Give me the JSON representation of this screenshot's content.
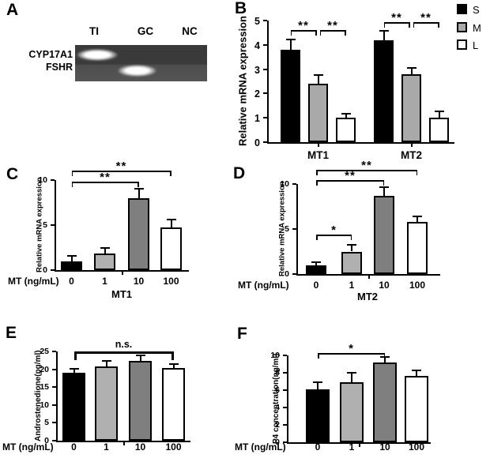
{
  "panelA": {
    "letter": "A",
    "lanes": [
      "TI",
      "GC",
      "NC"
    ],
    "row_labels": [
      "CYP17A1",
      "FSHR"
    ],
    "bands": [
      {
        "target": "CYP17A1",
        "lane": "TI"
      },
      {
        "target": "FSHR",
        "lane": "GC"
      }
    ]
  },
  "chart_data": [
    {
      "id": "B",
      "panel_letter": "B",
      "type": "bar",
      "ylabel": "Relative mRNA expression",
      "ylim": [
        0,
        5
      ],
      "yticks": [
        0,
        1,
        2,
        3,
        4,
        5
      ],
      "groups": [
        "MT1",
        "MT2"
      ],
      "series": [
        {
          "name": "S",
          "color": "#000000",
          "values": [
            3.8,
            4.2
          ],
          "errors": [
            0.38,
            0.36
          ]
        },
        {
          "name": "M",
          "color": "#a9a9a9",
          "values": [
            2.4,
            2.8
          ],
          "errors": [
            0.33,
            0.22
          ]
        },
        {
          "name": "L",
          "color": "#ffffff",
          "values": [
            1.0,
            1.0
          ],
          "errors": [
            0.15,
            0.22
          ]
        }
      ],
      "legend": [
        "S",
        "M",
        "L"
      ],
      "legend_position": "top-right",
      "grid": false,
      "significance": [
        {
          "group": "MT1",
          "between": [
            "S",
            "M"
          ],
          "label": "**"
        },
        {
          "group": "MT1",
          "between": [
            "M",
            "L"
          ],
          "label": "**"
        },
        {
          "group": "MT2",
          "between": [
            "S",
            "M"
          ],
          "label": "**"
        },
        {
          "group": "MT2",
          "between": [
            "M",
            "L"
          ],
          "label": "**"
        }
      ]
    },
    {
      "id": "C",
      "panel_letter": "C",
      "type": "bar",
      "ylabel": "Relative mRNA expression",
      "xlabel": "MT (ng/mL)",
      "group_label": "MT1",
      "ylim": [
        0,
        10
      ],
      "yticks": [
        0,
        5,
        10
      ],
      "categories": [
        "0",
        "1",
        "10",
        "100"
      ],
      "values": [
        1.0,
        1.8,
        8.0,
        4.7
      ],
      "errors": [
        0.45,
        0.55,
        0.95,
        0.85
      ],
      "colors": [
        "#000000",
        "#b0b0b0",
        "#7f7f7f",
        "#ffffff"
      ],
      "grid": false,
      "significance": [
        {
          "between": [
            "0",
            "10"
          ],
          "label": "**"
        },
        {
          "between": [
            "0",
            "100"
          ],
          "label": "**"
        }
      ]
    },
    {
      "id": "D",
      "panel_letter": "D",
      "type": "bar",
      "ylabel": "Relative mRNA expression",
      "xlabel": "MT (ng/mL)",
      "group_label": "MT2",
      "ylim": [
        0,
        10
      ],
      "yticks": [
        0,
        5,
        10
      ],
      "categories": [
        "0",
        "1",
        "10",
        "100"
      ],
      "values": [
        1.0,
        2.5,
        8.7,
        5.8
      ],
      "errors": [
        0.25,
        0.7,
        0.85,
        0.5
      ],
      "colors": [
        "#000000",
        "#b0b0b0",
        "#7f7f7f",
        "#ffffff"
      ],
      "grid": false,
      "significance": [
        {
          "between": [
            "0",
            "1"
          ],
          "label": "*"
        },
        {
          "between": [
            "0",
            "10"
          ],
          "label": "**"
        },
        {
          "between": [
            "0",
            "100"
          ],
          "label": "**"
        }
      ]
    },
    {
      "id": "E",
      "panel_letter": "E",
      "type": "bar",
      "ylabel": "Androstenedione(pg/ml)",
      "xlabel": "MT (ng/mL)",
      "ylim": [
        0,
        25
      ],
      "yticks": [
        0,
        5,
        10,
        15,
        20,
        25
      ],
      "categories": [
        "0",
        "1",
        "10",
        "100"
      ],
      "values": [
        19.0,
        20.8,
        22.3,
        20.3
      ],
      "errors": [
        1.0,
        1.4,
        1.3,
        1.0
      ],
      "colors": [
        "#000000",
        "#b0b0b0",
        "#7f7f7f",
        "#ffffff"
      ],
      "grid": false,
      "significance": [
        {
          "between": [
            "0",
            "100"
          ],
          "label": "n.s."
        }
      ]
    },
    {
      "id": "F",
      "panel_letter": "F",
      "type": "bar",
      "ylabel": "P4 concentration(ng/ml)",
      "xlabel": "MT (ng/mL)",
      "ylim": [
        0,
        10
      ],
      "yticks": [
        0,
        2,
        4,
        6,
        8,
        10
      ],
      "categories": [
        "0",
        "1",
        "10",
        "100"
      ],
      "values": [
        6.1,
        6.9,
        9.2,
        7.6
      ],
      "errors": [
        0.7,
        1.0,
        0.5,
        0.6
      ],
      "colors": [
        "#000000",
        "#b0b0b0",
        "#7f7f7f",
        "#ffffff"
      ],
      "grid": false,
      "significance": [
        {
          "between": [
            "0",
            "10"
          ],
          "label": "*"
        }
      ]
    }
  ]
}
